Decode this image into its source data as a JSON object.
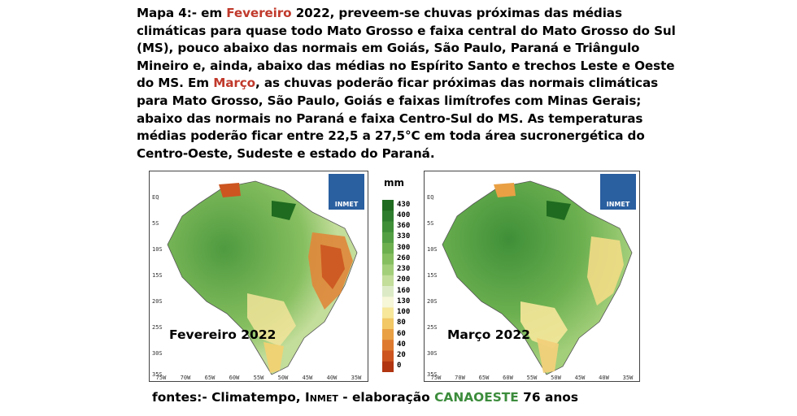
{
  "paragraph": {
    "label": "Mapa 4",
    "intro": ":- em ",
    "month1": "Fevereiro",
    "text1": " 2022, preveem-se chuvas próximas das médias climáticas para quase todo Mato Grosso e faixa central do Mato Grosso do Sul (MS), pouco abaixo das normais em Goiás, São Paulo, Paraná e Triângulo Mineiro e, ainda, abaixo das médias no Espírito Santo e trechos Leste e Oeste do MS. Em ",
    "month2": "Março",
    "text2": ", as chuvas poderão ficar próximas das normais climáticas para Mato Grosso, São Paulo, Goiás e faixas limítrofes com Minas Gerais; abaixo das normais no Paraná e faixa Centro-Sul do MS. As temperaturas médias poderão ficar entre 22,5 a 27,5°C em toda área sucronergética do Centro-Oeste, Sudeste e estado do Paraná.",
    "accent_color": "#c0392b"
  },
  "maps": [
    {
      "label": "Fevereiro 2022",
      "logo": "INMET"
    },
    {
      "label": "Março 2022",
      "logo": "INMET"
    }
  ],
  "map_axes": {
    "lat": [
      "EQ",
      "5S",
      "10S",
      "15S",
      "20S",
      "25S",
      "30S",
      "35S"
    ],
    "lon": [
      "75W",
      "70W",
      "65W",
      "60W",
      "55W",
      "50W",
      "45W",
      "40W",
      "35W"
    ]
  },
  "legend": {
    "unit": "mm",
    "values": [
      "430",
      "400",
      "360",
      "330",
      "300",
      "260",
      "230",
      "200",
      "160",
      "130",
      "100",
      "80",
      "60",
      "40",
      "20",
      "0"
    ],
    "colors": [
      "#1f6b1f",
      "#2e7d2e",
      "#3f8f38",
      "#53a044",
      "#6cb050",
      "#86bf60",
      "#a3cf7a",
      "#c3dd9a",
      "#dcebc6",
      "#f6f6d8",
      "#f6e79a",
      "#f2c765",
      "#e9a044",
      "#de7a30",
      "#cc5520",
      "#b03510"
    ]
  },
  "source": {
    "prefix": "fontes:- Climatempo, ",
    "inmet": "Inmet",
    "middle": " - elaboração ",
    "brand": "CANAOESTE",
    "suffix": " 76 anos",
    "brand_color": "#3c8c3c"
  }
}
